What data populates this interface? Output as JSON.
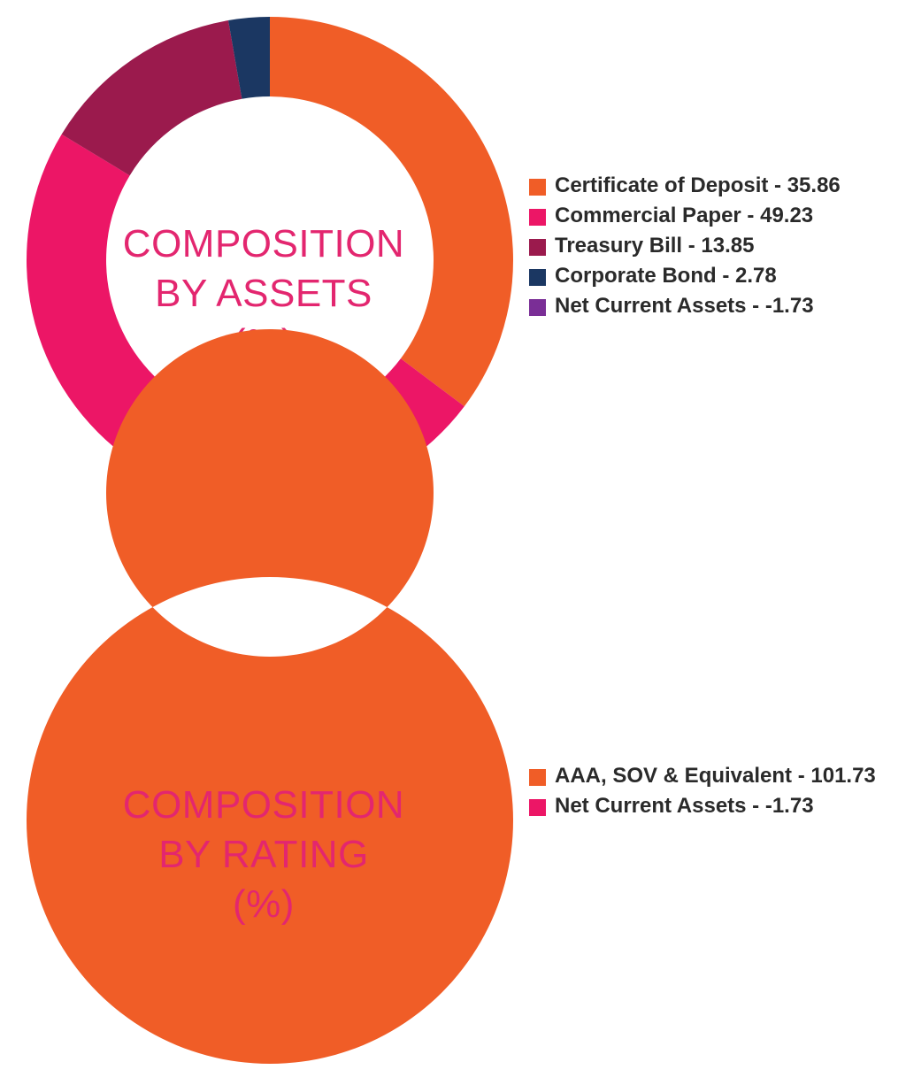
{
  "chart_data": [
    {
      "type": "pie",
      "center_label": {
        "line1": "COMPOSITION",
        "line2": "BY ASSETS",
        "line3": "(%)"
      },
      "legend_position": "right",
      "categories": [
        "Certificate of Deposit",
        "Commercial Paper",
        "Treasury Bill",
        "Corporate Bond",
        "Net Current Assets"
      ],
      "values": [
        35.86,
        49.23,
        13.85,
        2.78,
        -1.73
      ],
      "colors": [
        "#f05d27",
        "#ec1666",
        "#9b1a4d",
        "#1b3762",
        "#7a2e96"
      ],
      "legend": [
        {
          "text": "Certificate of Deposit - 35.86",
          "color": "#f05d27"
        },
        {
          "text": "Commercial Paper - 49.23",
          "color": "#ec1666"
        },
        {
          "text": "Treasury Bill - 13.85",
          "color": "#9b1a4d"
        },
        {
          "text": "Corporate Bond - 2.78",
          "color": "#1b3762"
        },
        {
          "text": "Net Current Assets - -1.73",
          "color": "#7a2e96"
        }
      ]
    },
    {
      "type": "pie",
      "center_label": {
        "line1": "COMPOSITION",
        "line2": "BY RATING",
        "line3": "(%)"
      },
      "legend_position": "right",
      "categories": [
        "AAA, SOV & Equivalent",
        "Net Current Assets"
      ],
      "values": [
        101.73,
        -1.73
      ],
      "colors": [
        "#f05d27",
        "#ec1666"
      ],
      "legend": [
        {
          "text": "AAA, SOV & Equivalent - 101.73",
          "color": "#f05d27"
        },
        {
          "text": "Net Current Assets - -1.73",
          "color": "#ec1666"
        }
      ]
    }
  ]
}
